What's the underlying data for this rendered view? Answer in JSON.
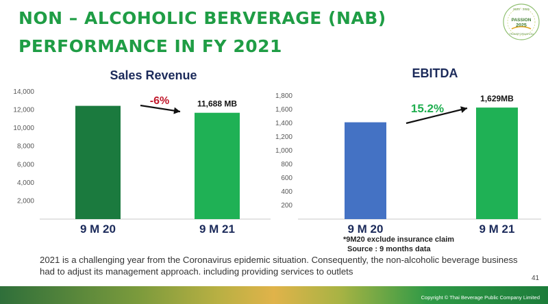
{
  "slide": {
    "title": "NON – ALCOHOLIC BERVERAGE (NAB) PERFORMANCE IN FY 2021",
    "logo_text": {
      "top": "2020 · 2025",
      "main": "PASSION",
      "year": "2025",
      "bottom": "TRANSFORMATION"
    },
    "footnote_line1": "*9M20 exclude insurance claim",
    "footnote_line2": "Source : 9 months data",
    "description": "2021 is a challenging year from the Coronavirus epidemic situation. Consequently, the non-alcoholic beverage business had to adjust its management approach. including providing services to outlets",
    "page_number": "41",
    "copyright": "Copyright © Thai Beverage Public Company Limited"
  },
  "colors": {
    "title": "#1f9d45",
    "bar_dark_green": "#1b7a3e",
    "bar_green": "#1fb155",
    "bar_blue": "#4472c4",
    "negative": "#c0182b",
    "positive": "#1fae4f"
  },
  "chart_data": [
    {
      "type": "bar",
      "title": "Sales Revenue",
      "categories": [
        "9 M 20",
        "9 M 21"
      ],
      "values": [
        12450,
        11688
      ],
      "data_labels": [
        "",
        "11,688 MB"
      ],
      "change_label": "-6%",
      "ylim": [
        0,
        14000
      ],
      "yticks": [
        2000,
        4000,
        6000,
        8000,
        10000,
        12000,
        14000
      ],
      "ytick_labels": [
        "2,000",
        "4,000",
        "6,000",
        "8,000",
        "10,000",
        "12,000",
        "14,000"
      ],
      "xlabel": "",
      "ylabel": ""
    },
    {
      "type": "bar",
      "title": "EBITDA",
      "categories": [
        "9 M 20",
        "9 M 21"
      ],
      "values": [
        1414,
        1629
      ],
      "data_labels": [
        "",
        "1,629MB"
      ],
      "change_label": "15.2%",
      "ylim": [
        0,
        1800
      ],
      "yticks": [
        200,
        400,
        600,
        800,
        1000,
        1200,
        1400,
        1600,
        1800
      ],
      "ytick_labels": [
        "200",
        "400",
        "600",
        "800",
        "1,000",
        "1,200",
        "1,400",
        "1,600",
        "1,800"
      ],
      "xlabel": "",
      "ylabel": ""
    }
  ]
}
